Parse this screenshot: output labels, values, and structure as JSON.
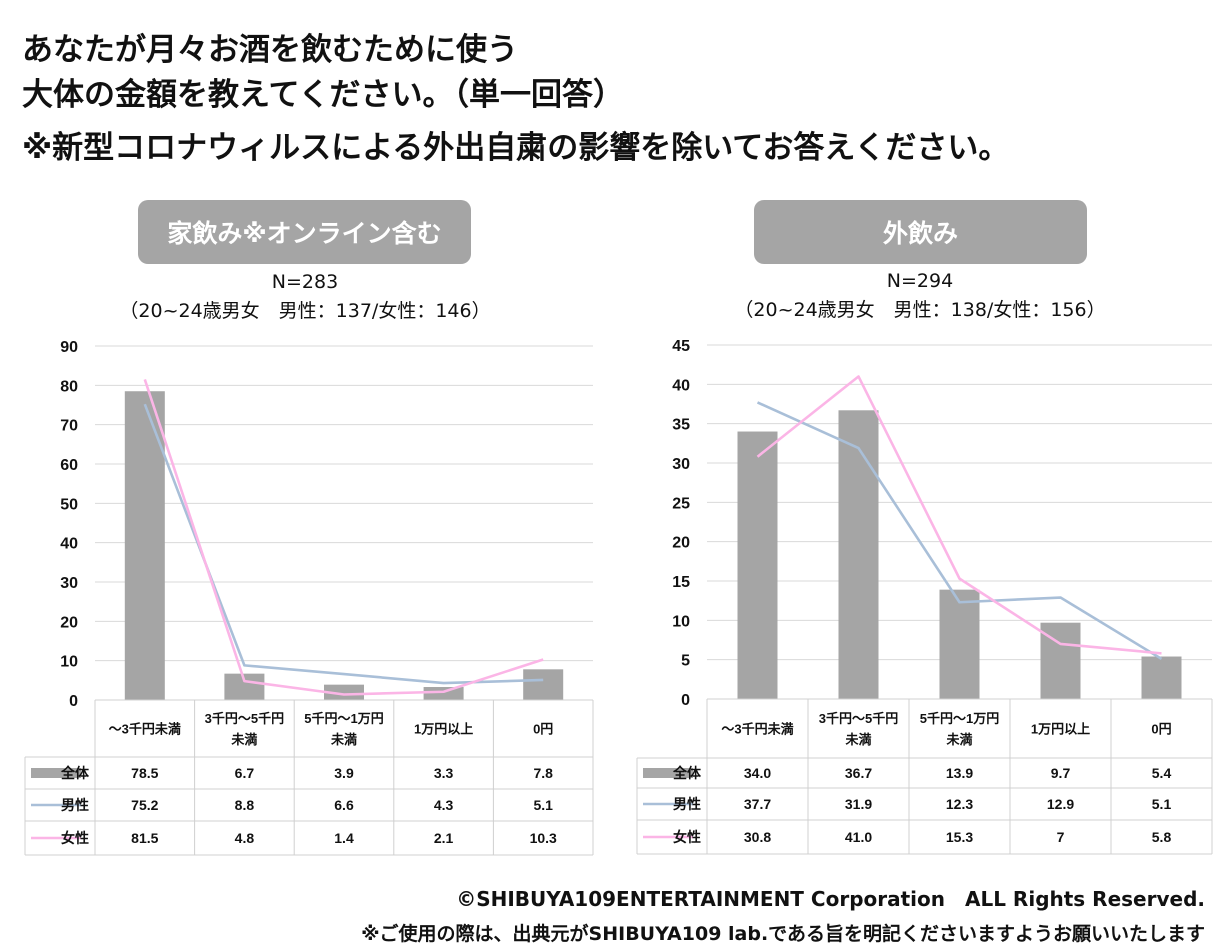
{
  "question": {
    "line1": "あなたが月々お酒を飲むために使う",
    "line2": "大体の金額を教えてください。（単一回答）",
    "line3": "※新型コロナウィルスによる外出自粛の影響を除いてお答えください。"
  },
  "footer": {
    "copyright": "©SHIBUYA109ENTERTAINMENT Corporation　ALL Rights Reserved.",
    "note": "※ご使用の際は、出典元がSHIBUYA109 lab.である旨を明記くださいますようお願いいたします"
  },
  "colors": {
    "bar": "#a5a5a5",
    "male": "#a9bfd8",
    "female": "#fbb5e6",
    "grid": "#d9d9d9"
  },
  "chart_data": [
    {
      "type": "bar",
      "title": "家飲み※オンライン含む",
      "n_label": "N=283",
      "sub_label": "（20~24歳男女　男性：137/女性：146）",
      "categories": [
        "～3千円未満",
        "3千円～5千円未満",
        "5千円～1万円未満",
        "1万円以上",
        "0円"
      ],
      "category_lines": [
        [
          "～3千円未満"
        ],
        [
          "3千円～5千円",
          "未満"
        ],
        [
          "5千円～1万円",
          "未満"
        ],
        [
          "1万円以上"
        ],
        [
          "0円"
        ]
      ],
      "ylim": [
        0,
        90
      ],
      "yticks": [
        0,
        10,
        20,
        30,
        40,
        50,
        60,
        70,
        80,
        90
      ],
      "grid": true,
      "series": [
        {
          "name": "全体",
          "kind": "bar",
          "values": [
            78.5,
            6.7,
            3.9,
            3.3,
            7.8
          ],
          "labels": [
            "78.5",
            "6.7",
            "3.9",
            "3.3",
            "7.8"
          ]
        },
        {
          "name": "男性",
          "kind": "line",
          "values": [
            75.2,
            8.8,
            6.6,
            4.3,
            5.1
          ],
          "labels": [
            "75.2",
            "8.8",
            "6.6",
            "4.3",
            "5.1"
          ]
        },
        {
          "name": "女性",
          "kind": "line",
          "values": [
            81.5,
            4.8,
            1.4,
            2.1,
            10.3
          ],
          "labels": [
            "81.5",
            "4.8",
            "1.4",
            "2.1",
            "10.3"
          ]
        }
      ]
    },
    {
      "type": "bar",
      "title": "外飲み",
      "n_label": "N=294",
      "sub_label": "（20~24歳男女　男性：138/女性：156）",
      "categories": [
        "～3千円未満",
        "3千円～5千円未満",
        "5千円～1万円未満",
        "1万円以上",
        "0円"
      ],
      "category_lines": [
        [
          "～3千円未満"
        ],
        [
          "3千円～5千円",
          "未満"
        ],
        [
          "5千円～1万円",
          "未満"
        ],
        [
          "1万円以上"
        ],
        [
          "0円"
        ]
      ],
      "ylim": [
        0,
        45
      ],
      "yticks": [
        0,
        5,
        10,
        15,
        20,
        25,
        30,
        35,
        40,
        45
      ],
      "grid": true,
      "series": [
        {
          "name": "全体",
          "kind": "bar",
          "values": [
            34.0,
            36.7,
            13.9,
            9.7,
            5.4
          ],
          "labels": [
            "34.0",
            "36.7",
            "13.9",
            "9.7",
            "5.4"
          ]
        },
        {
          "name": "男性",
          "kind": "line",
          "values": [
            37.7,
            31.9,
            12.3,
            12.9,
            5.1
          ],
          "labels": [
            "37.7",
            "31.9",
            "12.3",
            "12.9",
            "5.1"
          ]
        },
        {
          "name": "女性",
          "kind": "line",
          "values": [
            30.8,
            41.0,
            15.3,
            7,
            5.8
          ],
          "labels": [
            "30.8",
            "41.0",
            "15.3",
            "7",
            "5.8"
          ]
        }
      ]
    }
  ]
}
